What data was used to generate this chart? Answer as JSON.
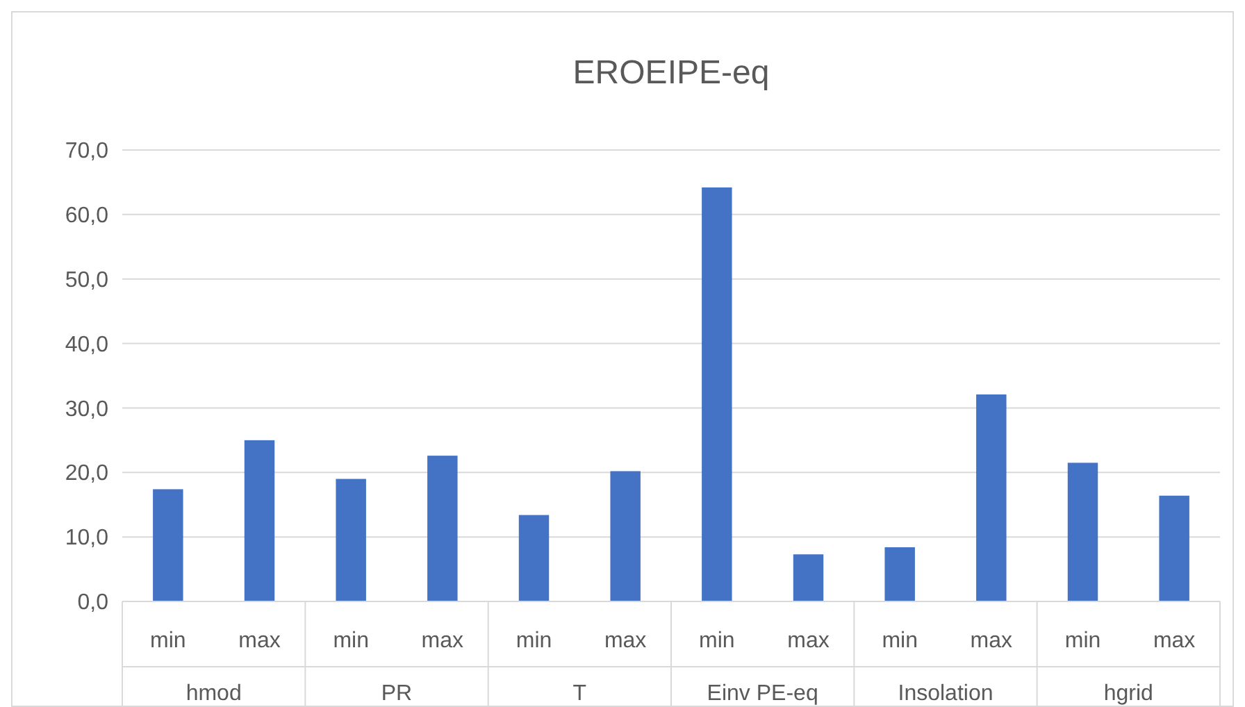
{
  "chart_data": {
    "type": "bar",
    "title": "EROEIPE-eq",
    "categories": [
      "min",
      "max",
      "min",
      "max",
      "min",
      "max",
      "min",
      "max",
      "min",
      "max",
      "min",
      "max"
    ],
    "values": [
      17.4,
      25.0,
      19.0,
      22.6,
      13.4,
      20.2,
      64.2,
      7.3,
      8.4,
      32.1,
      21.5,
      16.4
    ],
    "color": "#4472c4",
    "ylim": [
      0,
      70
    ],
    "yticks": [
      {
        "value": 0,
        "label": "0,0"
      },
      {
        "value": 10,
        "label": "10,0"
      },
      {
        "value": 20,
        "label": "20,0"
      },
      {
        "value": 30,
        "label": "30,0"
      },
      {
        "value": 40,
        "label": "40,0"
      },
      {
        "value": 50,
        "label": "50,0"
      },
      {
        "value": 60,
        "label": "60,0"
      },
      {
        "value": 70,
        "label": "70,0"
      }
    ],
    "grid": "y",
    "annotations": [
      "hmod",
      "PR",
      "T",
      "Einv PE-eq",
      "Insolation",
      "hgrid"
    ]
  }
}
